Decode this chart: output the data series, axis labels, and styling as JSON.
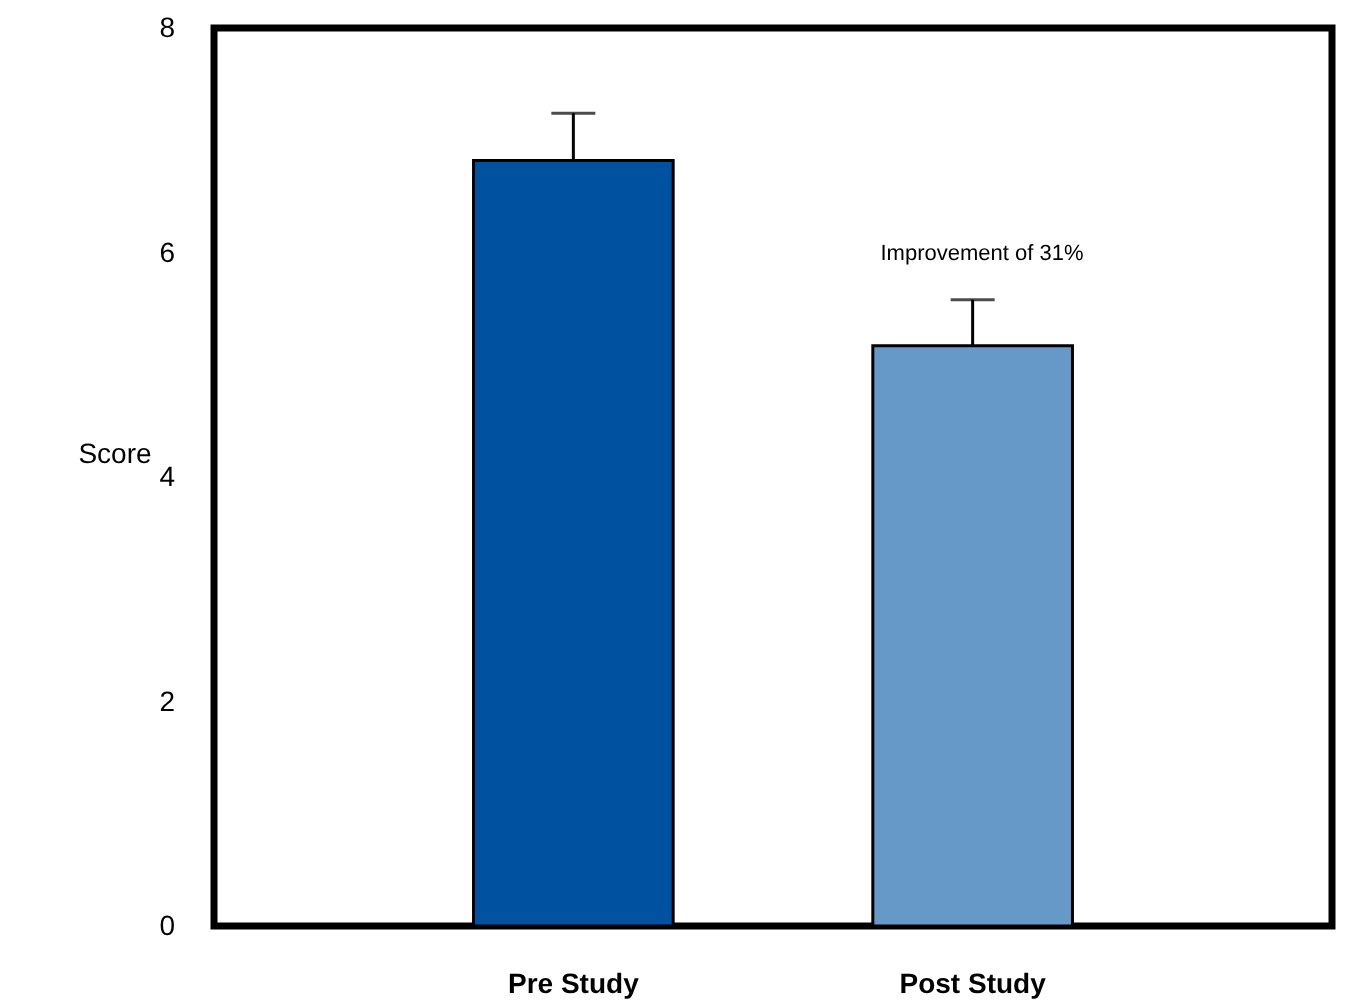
{
  "chart_data": {
    "type": "bar",
    "ylabel": "Score",
    "categories": [
      "Pre Study",
      "Post Study"
    ],
    "values": [
      6.82,
      5.17
    ],
    "colors": [
      "#0052a0",
      "#6699c8"
    ],
    "errors": [
      [
        6.82,
        7.24
      ],
      [
        5.17,
        5.58
      ]
    ],
    "ylim": [
      0,
      8
    ],
    "yticks": [
      0,
      2,
      4,
      6,
      8
    ],
    "grid": false,
    "annotations": [
      "Improvement of 31%"
    ]
  }
}
